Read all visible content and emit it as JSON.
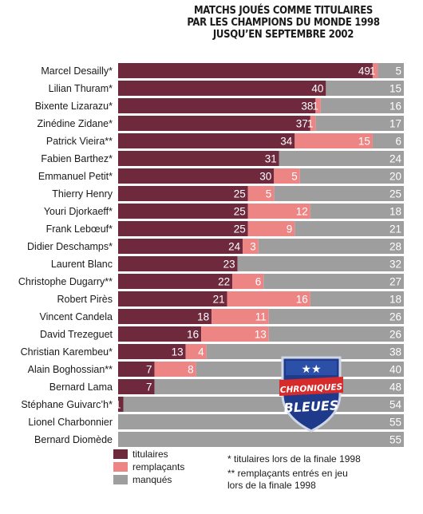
{
  "title_lines": [
    "MATCHS JOUÉS COMME TITULAIRES",
    "PAR LES CHAMPIONS DU MONDE 1998",
    "JUSQU’EN SEPTEMBRE 2002"
  ],
  "colors": {
    "titulaires": "#6e2a3c",
    "remplacants": "#ee8585",
    "manques": "#9e9e9e"
  },
  "legend": [
    {
      "key": "titulaires",
      "label": "titulaires"
    },
    {
      "key": "remplacants",
      "label": "remplaçants"
    },
    {
      "key": "manques",
      "label": "manqués"
    }
  ],
  "notes": [
    "* titulaires lors de la finale 1998",
    "** remplaçants entrés en jeu",
    "lors de la finale 1998"
  ],
  "logo": {
    "line1": "CHRONIQUES",
    "line2": "BLEUES",
    "stars": "★★"
  },
  "chart_data": {
    "type": "bar",
    "orientation": "horizontal",
    "stacked": true,
    "total": 55,
    "categories": [
      "Marcel Desailly*",
      "Lilian Thuram*",
      "Bixente Lizarazu*",
      "Zinédine Zidane*",
      "Patrick Vieira**",
      "Fabien Barthez*",
      "Emmanuel Petit*",
      "Thierry Henry",
      "Youri Djorkaeff*",
      "Frank Lebœuf*",
      "Didier Deschamps*",
      "Laurent Blanc",
      "Christophe Dugarry**",
      "Robert Pirès",
      "Vincent Candela",
      "David Trezeguet",
      "Christian Karembeu*",
      "Alain Boghossian**",
      "Bernard Lama",
      "Stéphane Guivarc’h*",
      "Lionel Charbonnier",
      "Bernard Diomède"
    ],
    "series": [
      {
        "name": "titulaires",
        "values": [
          49,
          40,
          38,
          37,
          34,
          31,
          30,
          25,
          25,
          25,
          24,
          23,
          22,
          21,
          18,
          16,
          13,
          7,
          7,
          1,
          0,
          0
        ]
      },
      {
        "name": "remplaçants",
        "values": [
          1,
          0,
          1,
          1,
          15,
          0,
          5,
          5,
          12,
          9,
          3,
          0,
          6,
          16,
          11,
          13,
          4,
          8,
          0,
          0,
          0,
          0
        ]
      },
      {
        "name": "manqués",
        "values": [
          5,
          15,
          16,
          17,
          6,
          24,
          20,
          25,
          18,
          21,
          28,
          32,
          27,
          18,
          26,
          26,
          38,
          40,
          48,
          54,
          55,
          55
        ]
      }
    ]
  }
}
